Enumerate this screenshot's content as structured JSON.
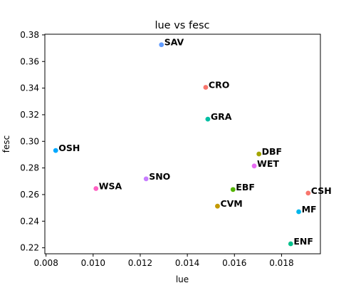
{
  "chart_data": {
    "type": "scatter",
    "title": "lue vs fesc",
    "xlabel": "lue",
    "ylabel": "fesc",
    "xlim": [
      0.00795,
      0.01965
    ],
    "ylim": [
      0.2155,
      0.3805
    ],
    "x_ticks": [
      "0.008",
      "0.010",
      "0.012",
      "0.014",
      "0.016",
      "0.018"
    ],
    "x_tick_values": [
      0.008,
      0.01,
      0.012,
      0.014,
      0.016,
      0.018
    ],
    "y_ticks": [
      "0.22",
      "0.24",
      "0.26",
      "0.28",
      "0.30",
      "0.32",
      "0.34",
      "0.36",
      "0.38"
    ],
    "y_tick_values": [
      0.22,
      0.24,
      0.26,
      0.28,
      0.3,
      0.32,
      0.34,
      0.36,
      0.38
    ],
    "grid": false,
    "legend": "none",
    "points": [
      {
        "label": "SAV",
        "x": 0.0129,
        "y": 0.3726,
        "color": "#619cff"
      },
      {
        "label": "CRO",
        "x": 0.01478,
        "y": 0.3406,
        "color": "#f8766d"
      },
      {
        "label": "GRA",
        "x": 0.01487,
        "y": 0.3167,
        "color": "#00bfa4"
      },
      {
        "label": "OSH",
        "x": 0.00841,
        "y": 0.2931,
        "color": "#00a9ff"
      },
      {
        "label": "DBF",
        "x": 0.01704,
        "y": 0.2905,
        "color": "#a3a500"
      },
      {
        "label": "WET",
        "x": 0.01684,
        "y": 0.2815,
        "color": "#e76bf3"
      },
      {
        "label": "SNO",
        "x": 0.01225,
        "y": 0.2718,
        "color": "#c77cff"
      },
      {
        "label": "WSA",
        "x": 0.01012,
        "y": 0.2645,
        "color": "#ff61c3"
      },
      {
        "label": "EBF",
        "x": 0.01594,
        "y": 0.2638,
        "color": "#53b400"
      },
      {
        "label": "CVM",
        "x": 0.01528,
        "y": 0.2513,
        "color": "#c49a00"
      },
      {
        "label": "CSH",
        "x": 0.01913,
        "y": 0.2611,
        "color": "#f8766d"
      },
      {
        "label": "MF",
        "x": 0.01873,
        "y": 0.2471,
        "color": "#00b6eb"
      },
      {
        "label": "ENF",
        "x": 0.01839,
        "y": 0.223,
        "color": "#00c08b"
      }
    ]
  }
}
